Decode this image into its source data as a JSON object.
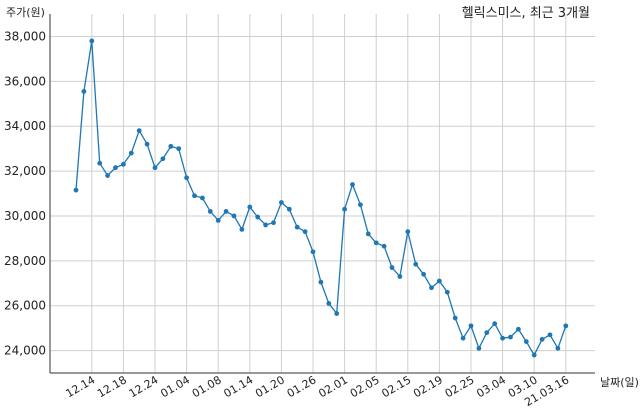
{
  "chart_data": {
    "type": "line",
    "title": "헬릭스미스, 최근 3개월",
    "ylabel": "주가(원)",
    "xlabel": "날짜(일)",
    "ylim": [
      23000,
      39000
    ],
    "yticks": [
      24000,
      26000,
      28000,
      30000,
      32000,
      34000,
      36000,
      38000
    ],
    "ytick_labels": [
      "24,000",
      "26,000",
      "28,000",
      "30,000",
      "32,000",
      "34,000",
      "36,000",
      "38,000"
    ],
    "xticks": [
      "12.14",
      "12.18",
      "12.24",
      "01.04",
      "01.08",
      "01.14",
      "01.20",
      "01.26",
      "02.01",
      "02.05",
      "02.15",
      "02.19",
      "02.25",
      "03.04",
      "03.10",
      "21.03.16"
    ],
    "grid": true,
    "color": "#1f77b4",
    "series": [
      {
        "values": [
          31150,
          35550,
          37800,
          32350,
          31800,
          32150,
          32300,
          32800,
          33800,
          33200,
          32150,
          32550,
          33100,
          33000,
          31700,
          30900,
          30800,
          30200,
          29800,
          30200,
          30000,
          29400,
          30400,
          29950,
          29600,
          29700,
          30600,
          30300,
          29500,
          29300,
          28400,
          27050,
          26100,
          25650,
          30300,
          31400,
          30500,
          29200,
          28800,
          28650,
          27700,
          27300,
          29300,
          27850,
          27400,
          26800,
          27100,
          26600,
          25450,
          24550,
          25100,
          24100,
          24800,
          25200,
          24550,
          24600,
          24950,
          24400,
          23800,
          24500,
          24700,
          24100,
          25100
        ]
      }
    ]
  }
}
